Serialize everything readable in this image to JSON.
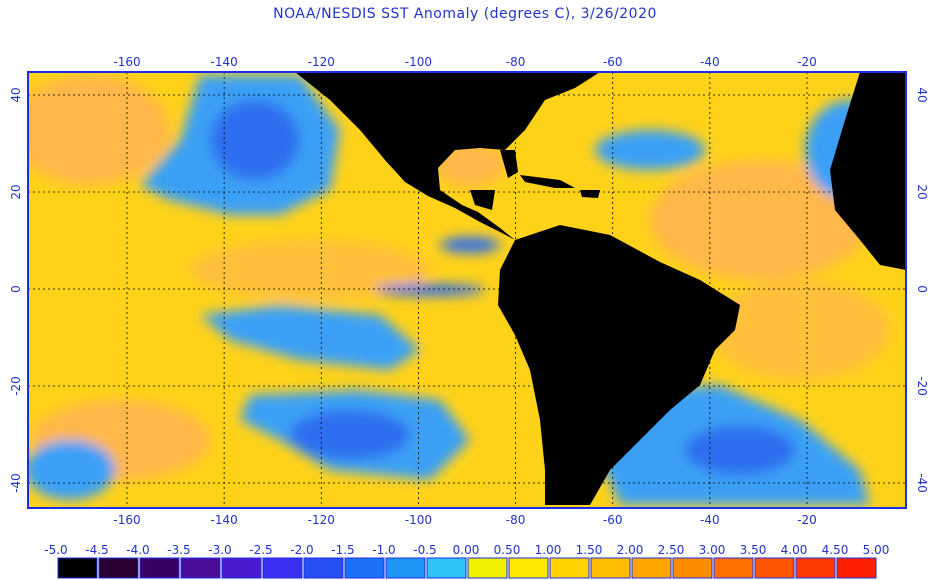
{
  "title": "NOAA/NESDIS SST Anomaly (degrees C), 3/26/2020",
  "lon_ticks": [
    "-160",
    "-140",
    "-120",
    "-100",
    "-80",
    "-60",
    "-40",
    "-20"
  ],
  "lat_ticks": [
    "40",
    "20",
    "0",
    "-20",
    "-40"
  ],
  "colorbar": {
    "labels": [
      "-5.0",
      "-4.5",
      "-4.0",
      "-3.5",
      "-3.0",
      "-2.5",
      "-2.0",
      "-1.5",
      "-1.0",
      "-0.5",
      "0.00",
      "0.50",
      "1.00",
      "1.50",
      "2.00",
      "2.50",
      "3.00",
      "3.50",
      "4.00",
      "4.50",
      "5.00"
    ],
    "colors": [
      "#000000",
      "#2a0033",
      "#3b0066",
      "#4b0b99",
      "#4a1ad1",
      "#3a2ef0",
      "#2550f5",
      "#1c72f5",
      "#1e96f5",
      "#2ec4f5",
      "#f0f000",
      "#ffe800",
      "#ffd200",
      "#ffbc00",
      "#ffa500",
      "#ff8c00",
      "#ff7000",
      "#ff5400",
      "#ff3a00",
      "#ff2000"
    ]
  },
  "map_colors": {
    "ocean_warm": "#ffd21a",
    "ocean_orange": "#ffb84a",
    "ocean_cool": "#3aa0f5",
    "ocean_cold": "#2e6ef0",
    "land": "#000000",
    "frame": "#1e2ee6"
  }
}
